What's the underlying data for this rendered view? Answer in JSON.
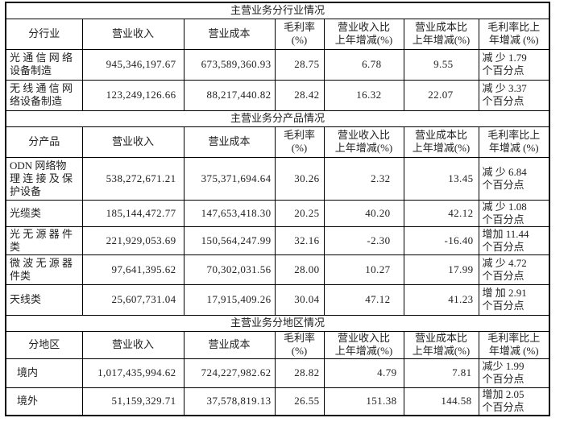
{
  "page": {
    "background": "#ffffff",
    "text_color": "#222222",
    "border_color": "#000000"
  },
  "table": {
    "sections": [
      {
        "title": "主营业务分行业情况",
        "headers": [
          "分行业",
          "营业收入",
          "营业成本",
          "毛利率\n(%)",
          "营业收入比\n上年增减(%)",
          "营业成本比\n上年增减(%)",
          "毛利率比上\n年增减 (%)"
        ],
        "rows": [
          [
            "光 通 信 网 络\n设备制造",
            "945,346,197.67",
            "673,589,360.93",
            "28.75",
            "6.78",
            "9.55",
            "减 少 1.79\n个百分点"
          ],
          [
            "无 线 通 信 网\n络设备制造",
            "123,249,126.66",
            "88,217,440.82",
            "28.42",
            "16.32",
            "22.07",
            "减 少 3.37\n个百分点"
          ]
        ]
      },
      {
        "title": "主营业务分产品情况",
        "headers": [
          "分产品",
          "营业收入",
          "营业成本",
          "毛利率\n(%)",
          "营业收入比\n上年增减(%)",
          "营业成本比\n上年增减(%)",
          "毛利率比上\n年增减 (%)"
        ],
        "rows": [
          [
            "ODN 网络物\n理 连 接 及 保\n护设备",
            "538,272,671.21",
            "375,371,694.64",
            "30.26",
            "2.32",
            "13.45",
            "减 少 6.84\n个百分点"
          ],
          [
            "光缆类",
            "185,144,472.77",
            "147,653,418.30",
            "20.25",
            "40.20",
            "42.12",
            "减 少 1.08\n个百分点"
          ],
          [
            "光 无 源 器 件\n类",
            "221,929,053.69",
            "150,564,247.99",
            "32.16",
            "-2.30",
            "-16.40",
            "增加 11.44\n个百分点"
          ],
          [
            "微 波 无 源 器\n件类",
            "97,641,395.62",
            "70,302,031.56",
            "28.00",
            "10.27",
            "17.99",
            "减 少 4.72\n个百分点"
          ],
          [
            "天线类",
            "25,607,731.04",
            "17,915,409.26",
            "30.04",
            "47.12",
            "41.23",
            "增 加 2.91\n个百分点"
          ]
        ]
      },
      {
        "title": "主营业务分地区情况",
        "headers": [
          "分地区",
          "营业收入",
          "营业成本",
          "毛利率\n(%)",
          "营业收入比\n上年增减(%)",
          "营业成本比\n上年增减(%)",
          "毛利率比上\n年增减 (%)"
        ],
        "rows": [
          [
            "境内",
            "1,017,435,994.62",
            "724,227,982.62",
            "28.82",
            "4.79",
            "7.81",
            "减少 1.99\n个百分点"
          ],
          [
            "境外",
            "51,159,329.71",
            "37,578,819.13",
            "26.55",
            "151.38",
            "144.58",
            "增加 2.05\n个百分点"
          ]
        ]
      }
    ]
  }
}
